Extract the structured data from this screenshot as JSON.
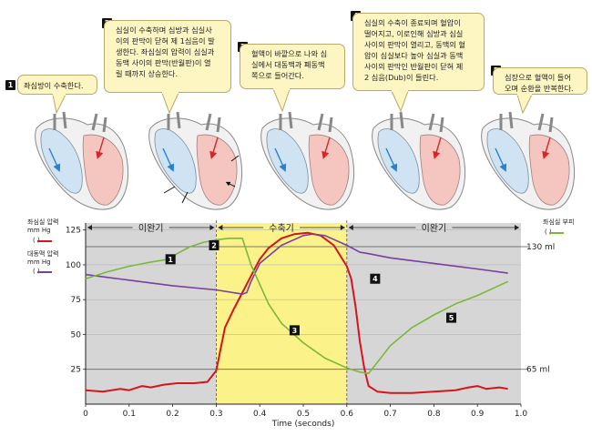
{
  "steps": [
    {
      "num": "1",
      "text": "좌심방이 수축한다."
    },
    {
      "num": "2",
      "text": "심실이 수축하며 심방과 심실사\n이의 판막이 닫혀 제 1심음이 발\n생한다. 좌심실의 압력이 심실과\n동맥 사이의 판막(반월판)이 열\n릴 때까지 상승한다."
    },
    {
      "num": "3",
      "text": "혈액이 바깥으로 나와 심\n실에서 대동맥과 폐동맥\n쪽으로 들어간다."
    },
    {
      "num": "4",
      "text": "심실의 수축이 종료되며 혈압이\n떨어지고, 이로인해 심방과 심실\n사이의 판막이 열리고, 동맥의 혈\n압이 심실보다 높아 심실과 동맥\n사이의 판막인 반월판이 닫혀 제\n2 심음(Dub)이 들린다."
    },
    {
      "num": "5",
      "text": "심장으로 혈액이 들어\n오며 순환을 반복한다."
    }
  ],
  "legend": {
    "lv_pressure": {
      "title": "좌심실 압력\nmm Hg",
      "paren": "(       )"
    },
    "aortic_pressure": {
      "title": "대동맥 압력\nmm Hg",
      "paren": "(       )"
    },
    "lv_volume": {
      "title": "좌심실 부피",
      "paren": "(       )"
    }
  },
  "colors": {
    "lv_pressure": "#d4161c",
    "aortic": "#7b3fa0",
    "volume": "#7bb83a",
    "systole_bg": "#fbf28a",
    "diastole_bg": "#d6d6d6"
  },
  "chart_data": {
    "type": "line",
    "title": "",
    "xlabel": "Time (seconds)",
    "ylabel": "mm Hg",
    "xlim": [
      0,
      1.0
    ],
    "ylim": [
      0,
      130
    ],
    "x_ticks": [
      "0",
      "0.1",
      "0.2",
      "0.3",
      "0.4",
      "0.5",
      "0.6",
      "0.7",
      "0.8",
      "0.9",
      "1.0"
    ],
    "y_ticks": [
      "25",
      "50",
      "75",
      "100",
      "125"
    ],
    "y2_ticks": [
      {
        "label": "130 ml",
        "value": 113
      },
      {
        "label": "65 ml",
        "value": 25
      }
    ],
    "phases": [
      {
        "label": "이완기",
        "start": 0,
        "end": 0.3
      },
      {
        "label": "수축기",
        "start": 0.3,
        "end": 0.6
      },
      {
        "label": "이완기",
        "start": 0.6,
        "end": 1.0
      }
    ],
    "markers": [
      {
        "label": "1",
        "x": 0.195,
        "y": 104
      },
      {
        "label": "2",
        "x": 0.295,
        "y": 114
      },
      {
        "label": "3",
        "x": 0.48,
        "y": 53
      },
      {
        "label": "4",
        "x": 0.665,
        "y": 90
      },
      {
        "label": "5",
        "x": 0.84,
        "y": 62
      }
    ],
    "series": [
      {
        "name": "좌심실 압력",
        "color": "#d4161c",
        "x": [
          0,
          0.04,
          0.08,
          0.1,
          0.13,
          0.15,
          0.18,
          0.21,
          0.25,
          0.28,
          0.3,
          0.32,
          0.34,
          0.36,
          0.38,
          0.4,
          0.42,
          0.45,
          0.48,
          0.51,
          0.54,
          0.57,
          0.6,
          0.61,
          0.62,
          0.63,
          0.64,
          0.65,
          0.67,
          0.7,
          0.75,
          0.8,
          0.85,
          0.88,
          0.9,
          0.92,
          0.95,
          0.97
        ],
        "y": [
          10,
          9,
          11,
          10,
          13,
          12,
          14,
          15,
          15,
          16,
          24,
          55,
          68,
          80,
          92,
          104,
          112,
          119,
          122,
          123,
          121,
          114,
          99,
          90,
          70,
          45,
          26,
          13,
          9,
          8,
          8,
          9,
          10,
          12,
          13,
          11,
          12,
          11
        ]
      },
      {
        "name": "대동맥 압력",
        "color": "#7b3fa0",
        "x": [
          0,
          0.1,
          0.2,
          0.3,
          0.36,
          0.37,
          0.38,
          0.4,
          0.45,
          0.5,
          0.52,
          0.55,
          0.6,
          0.63,
          0.65,
          0.7,
          0.8,
          0.9,
          0.97
        ],
        "y": [
          93,
          89,
          85,
          82,
          79,
          80,
          88,
          101,
          114,
          121,
          122,
          121,
          114,
          109,
          108,
          105,
          101,
          97,
          94
        ]
      },
      {
        "name": "좌심실 부피",
        "color": "#7bb83a",
        "x": [
          0,
          0.05,
          0.1,
          0.15,
          0.19,
          0.21,
          0.24,
          0.27,
          0.3,
          0.33,
          0.36,
          0.38,
          0.42,
          0.45,
          0.5,
          0.55,
          0.6,
          0.63,
          0.65,
          0.67,
          0.7,
          0.75,
          0.8,
          0.85,
          0.9,
          0.97
        ],
        "y": [
          90,
          95,
          99,
          102,
          104,
          108,
          113,
          116,
          118,
          119,
          119,
          100,
          72,
          58,
          44,
          33,
          26,
          23,
          22,
          30,
          42,
          55,
          64,
          72,
          78,
          88
        ]
      }
    ]
  }
}
